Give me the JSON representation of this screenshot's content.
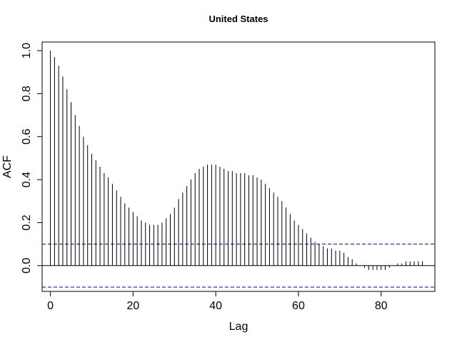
{
  "chart_data": {
    "type": "bar",
    "title": "United States",
    "xlabel": "Lag",
    "ylabel": "ACF",
    "xlim": [
      -2,
      93
    ],
    "ylim": [
      -0.12,
      1.04
    ],
    "xticks": [
      0,
      20,
      40,
      60,
      80
    ],
    "yticks": [
      0.0,
      0.2,
      0.4,
      0.6,
      0.8,
      1.0
    ],
    "xtick_labels": [
      "0",
      "20",
      "40",
      "60",
      "80"
    ],
    "ytick_labels": [
      "0.0",
      "0.2",
      "0.4",
      "0.6",
      "0.8",
      "1.0"
    ],
    "grid": false,
    "confidence_band": 0.1,
    "colors": {
      "bars": "#000000",
      "band": "#00008b",
      "zero_line": "#000000",
      "frame": "#000000"
    },
    "series": [
      {
        "x": [
          0,
          1,
          2,
          3,
          4,
          5,
          6,
          7,
          8,
          9,
          10,
          11,
          12,
          13,
          14,
          15,
          16,
          17,
          18,
          19,
          20,
          21,
          22,
          23,
          24,
          25,
          26,
          27,
          28,
          29,
          30,
          31,
          32,
          33,
          34,
          35,
          36,
          37,
          38,
          39,
          40,
          41,
          42,
          43,
          44,
          45,
          46,
          47,
          48,
          49,
          50,
          51,
          52,
          53,
          54,
          55,
          56,
          57,
          58,
          59,
          60,
          61,
          62,
          63,
          64,
          65,
          66,
          67,
          68,
          69,
          70,
          71,
          72,
          73,
          74,
          75,
          76,
          77,
          78,
          79,
          80,
          81,
          82,
          83,
          84,
          85,
          86,
          87,
          88,
          89,
          90
        ],
        "values": [
          1.0,
          0.97,
          0.93,
          0.88,
          0.82,
          0.76,
          0.7,
          0.65,
          0.6,
          0.56,
          0.52,
          0.49,
          0.46,
          0.43,
          0.41,
          0.38,
          0.35,
          0.32,
          0.29,
          0.27,
          0.25,
          0.23,
          0.21,
          0.2,
          0.19,
          0.19,
          0.19,
          0.2,
          0.22,
          0.24,
          0.27,
          0.31,
          0.34,
          0.37,
          0.4,
          0.43,
          0.45,
          0.46,
          0.47,
          0.47,
          0.47,
          0.46,
          0.45,
          0.44,
          0.44,
          0.43,
          0.43,
          0.43,
          0.42,
          0.42,
          0.41,
          0.4,
          0.38,
          0.36,
          0.34,
          0.32,
          0.3,
          0.27,
          0.24,
          0.21,
          0.19,
          0.17,
          0.15,
          0.13,
          0.11,
          0.1,
          0.09,
          0.08,
          0.08,
          0.07,
          0.07,
          0.06,
          0.04,
          0.03,
          0.01,
          0.0,
          -0.01,
          -0.02,
          -0.02,
          -0.02,
          -0.02,
          -0.02,
          -0.01,
          0.0,
          0.01,
          0.01,
          0.02,
          0.02,
          0.02,
          0.02,
          0.02
        ]
      }
    ]
  }
}
